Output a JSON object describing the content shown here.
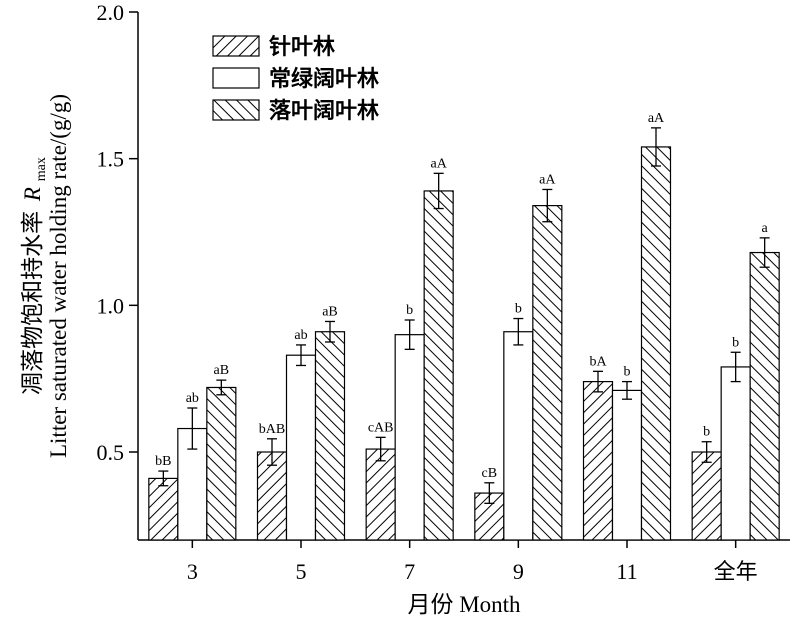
{
  "chart_data": {
    "type": "bar",
    "categories": [
      "3",
      "5",
      "7",
      "9",
      "11",
      "全年"
    ],
    "xlabel": "月份 Month",
    "ylabel": {
      "cn": "凋落物饱和持水率",
      "var": "R",
      "sub": "max",
      "en": "Litter saturated water holding rate/(g/g)"
    },
    "ylim": [
      0.2,
      2.0
    ],
    "yticks": [
      "0.5",
      "1.0",
      "1.5",
      "2.0"
    ],
    "grid": false,
    "legend_position": "top-left",
    "series": [
      {
        "name": "针叶林",
        "pattern": "hatch-forward",
        "values": [
          0.41,
          0.5,
          0.51,
          0.36,
          0.74,
          0.5
        ],
        "errors": [
          0.025,
          0.045,
          0.04,
          0.035,
          0.035,
          0.035
        ],
        "letters": [
          "bB",
          "bAB",
          "cAB",
          "cB",
          "bA",
          "b"
        ]
      },
      {
        "name": "常绿阔叶林",
        "pattern": "none",
        "values": [
          0.58,
          0.83,
          0.9,
          0.91,
          0.71,
          0.79
        ],
        "errors": [
          0.07,
          0.035,
          0.05,
          0.045,
          0.03,
          0.05
        ],
        "letters": [
          "ab",
          "ab",
          "b",
          "b",
          "b",
          "b"
        ]
      },
      {
        "name": "落叶阔叶林",
        "pattern": "hatch-back",
        "values": [
          0.72,
          0.91,
          1.39,
          1.34,
          1.54,
          1.18
        ],
        "errors": [
          0.025,
          0.035,
          0.06,
          0.055,
          0.065,
          0.05
        ],
        "letters": [
          "aB",
          "aB",
          "aA",
          "aA",
          "aA",
          "a"
        ]
      }
    ]
  }
}
